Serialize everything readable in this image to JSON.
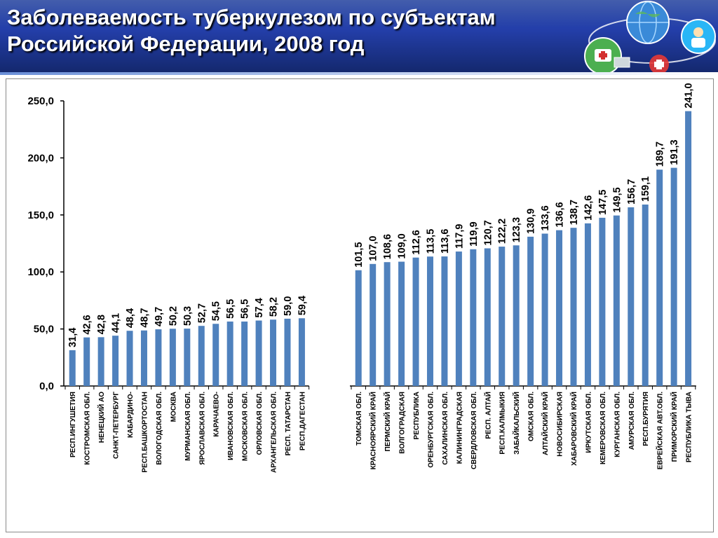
{
  "header": {
    "title_line1": "Заболеваемость туберкулезом по субъектам",
    "title_line2": "Российской Федерации, 2008 год"
  },
  "colors": {
    "bar": "#4f81bd",
    "header": "#1f3a9c"
  },
  "icons": [
    "globe-icon",
    "medical-bag-icon",
    "laptop-icon",
    "doctor-icon",
    "ambulance-icon"
  ],
  "chart_data": {
    "type": "bar",
    "title": "",
    "xlabel": "",
    "ylabel": "",
    "ylim": [
      0,
      250
    ],
    "yticks": [
      "0,0",
      "50,0",
      "100,0",
      "150,0",
      "200,0",
      "250,0"
    ],
    "grid": false,
    "groups": [
      {
        "categories": [
          "РЕСП.ИНГУШЕТИЯ",
          "КОСТРОМСКАЯ ОБЛ.",
          "НЕНЕЦКИЙ АО",
          "САНКТ-ПЕТЕРБУРГ",
          "КАБАРДИНО-",
          "РЕСП.БАШКОРТОСТАН",
          "ВОЛОГОДСКАЯ ОБЛ.",
          "МОСКВА",
          "МУРМАНСКАЯ ОБЛ.",
          "ЯРОСЛАВСКАЯ ОБЛ.",
          "КАРАЧАЕВО-",
          "ИВАНОВСКАЯ ОБЛ.",
          "МОСКОВСКАЯ ОБЛ.",
          "ОРЛОВСКАЯ ОБЛ.",
          "АРХАНГЕЛЬСКАЯ ОБЛ.",
          "РЕСП. ТАТАРСТАН",
          "РЕСП.ДАГЕСТАН"
        ],
        "values": [
          31.4,
          42.6,
          42.8,
          44.1,
          48.4,
          48.7,
          49.7,
          50.2,
          50.3,
          52.7,
          54.5,
          56.5,
          56.5,
          57.4,
          58.2,
          59.0,
          59.4
        ],
        "labels": [
          "31,4",
          "42,6",
          "42,8",
          "44,1",
          "48,4",
          "48,7",
          "49,7",
          "50,2",
          "50,3",
          "52,7",
          "54,5",
          "56,5",
          "56,5",
          "57,4",
          "58,2",
          "59,0",
          "59,4"
        ]
      },
      {
        "categories": [
          "ТОМСКАЯ ОБЛ.",
          "КРАСНОЯРСКИЙ КРАЙ",
          "ПЕРМСКИЙ КРАЙ",
          "ВОЛГОГРАДСКАЯ",
          "РЕСПУБЛИКА",
          "ОРЕНБУРГСКАЯ ОБЛ.",
          "САХАЛИНСКАЯ ОБЛ.",
          "КАЛИНИНГРАДСКАЯ",
          "СВЕРДЛОВСКАЯ ОБЛ.",
          "РЕСП. АЛТАЙ",
          "РЕСП.КАЛМЫКИЯ",
          "ЗАБАЙКАЛЬСКИЙ",
          "ОМСКАЯ ОБЛ.",
          "АЛТАЙСКИЙ КРАЙ",
          "НОВОСИБИРСКАЯ",
          "ХАБАРОВСКИЙ КРАЙ",
          "ИРКУТСКАЯ ОБЛ.",
          "КЕМЕРОВСКАЯ ОБЛ.",
          "КУРГАНСКАЯ ОБЛ.",
          "АМУРСКАЯ ОБЛ.",
          "РЕСП.БУРЯТИЯ",
          "ЕВРЕЙСКАЯ АВТ.ОБЛ.",
          "ПРИМОРСКИЙ КРАЙ",
          "РЕСПУБЛИКА ТЫВА"
        ],
        "values": [
          101.5,
          107.0,
          108.6,
          109.0,
          112.6,
          113.5,
          113.6,
          117.9,
          119.9,
          120.7,
          122.2,
          123.3,
          130.9,
          133.6,
          136.6,
          138.7,
          142.6,
          147.5,
          149.5,
          156.7,
          159.1,
          189.7,
          191.3,
          241.0
        ],
        "labels": [
          "101,5",
          "107,0",
          "108,6",
          "109,0",
          "112,6",
          "113,5",
          "113,6",
          "117,9",
          "119,9",
          "120,7",
          "122,2",
          "123,3",
          "130,9",
          "133,6",
          "136,6",
          "138,7",
          "142,6",
          "147,5",
          "149,5",
          "156,7",
          "159,1",
          "189,7",
          "191,3",
          "241,0"
        ]
      }
    ]
  }
}
